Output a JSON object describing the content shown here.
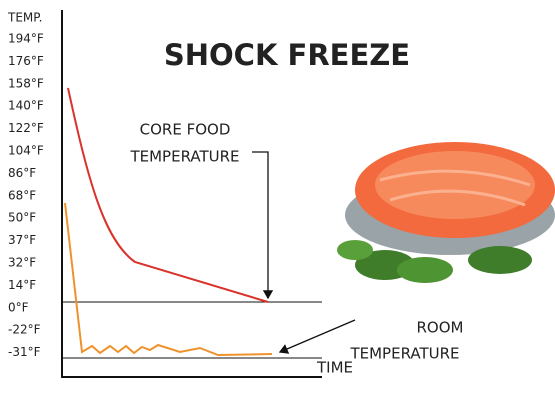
{
  "title": "SHOCK FREEZE",
  "y_axis_label": "TEMP.",
  "y_labels": [
    "194°F",
    "176°F",
    "158°F",
    "140°F",
    "122°F",
    "104°F",
    "86°F",
    "68°F",
    "50°F",
    "37°F",
    "32°F",
    "14°F",
    "0°F",
    "-22°F",
    "-31°F"
  ],
  "x_axis_label": "TIME",
  "annotations": {
    "core_food": [
      "CORE FOOD",
      "TEMPERATURE"
    ],
    "room": [
      "ROOM",
      "TEMPERATURE"
    ]
  }
}
